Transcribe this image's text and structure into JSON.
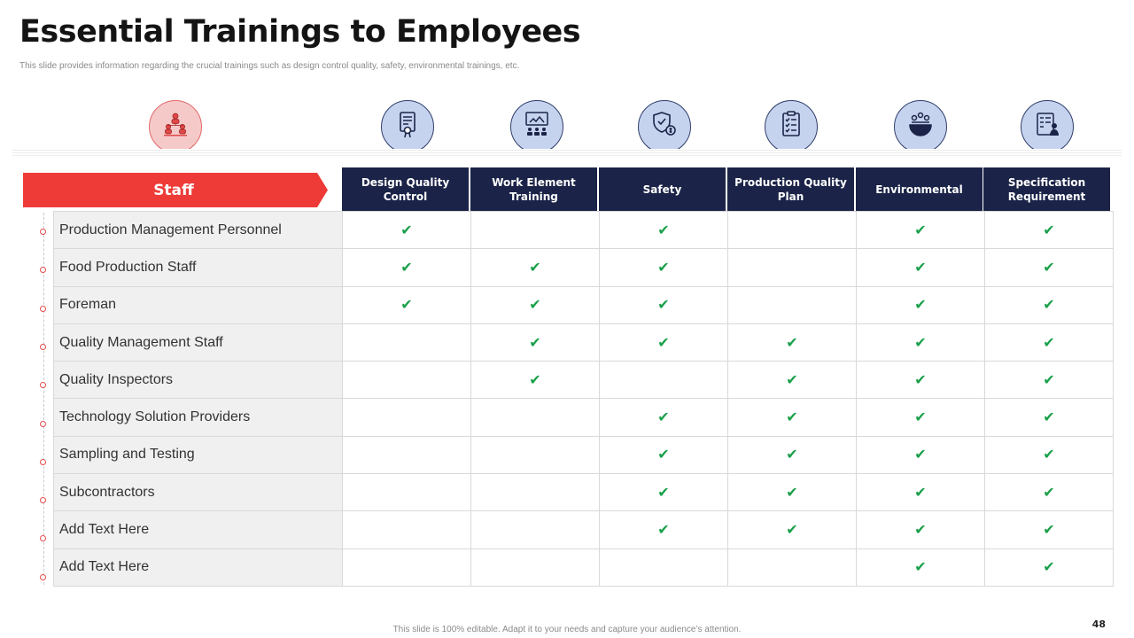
{
  "slide": {
    "title": "Essential Trainings to Employees",
    "subtitle": "This slide provides information regarding the crucial trainings such as design control quality, safety, environmental trainings, etc.",
    "footer": "This slide is 100% editable.  Adapt it to your needs and capture your audience’s attention.",
    "page_number": "48"
  },
  "staff_label": "Staff",
  "icons": [
    "team-hierarchy-icon",
    "certificate-icon",
    "presentation-training-icon",
    "safety-shield-icon",
    "clipboard-checklist-icon",
    "globe-environment-icon",
    "specification-document-icon"
  ],
  "colors": {
    "accent_red": "#ee3b38",
    "header_navy": "#1b2448",
    "check_green": "#1aa04a",
    "icon_fill": "#c6d3ef"
  },
  "columns": [
    "Design Quality\nControl",
    "Work Element\nTraining",
    "Safety",
    "Production Quality\nPlan",
    "Environmental",
    "Specification\nRequirement"
  ],
  "check_symbol": "✔",
  "rows": [
    {
      "label": "Production Management Personnel",
      "checks": [
        true,
        false,
        true,
        false,
        true,
        true
      ]
    },
    {
      "label": "Food Production Staff",
      "checks": [
        true,
        true,
        true,
        false,
        true,
        true
      ]
    },
    {
      "label": "Foreman",
      "checks": [
        true,
        true,
        true,
        false,
        true,
        true
      ]
    },
    {
      "label": "Quality Management Staff",
      "checks": [
        false,
        true,
        true,
        true,
        true,
        true
      ]
    },
    {
      "label": "Quality Inspectors",
      "checks": [
        false,
        true,
        false,
        true,
        true,
        true
      ]
    },
    {
      "label": "Technology  Solution Providers",
      "checks": [
        false,
        false,
        true,
        true,
        true,
        true
      ]
    },
    {
      "label": "Sampling and Testing",
      "checks": [
        false,
        false,
        true,
        true,
        true,
        true
      ]
    },
    {
      "label": "Subcontractors",
      "checks": [
        false,
        false,
        true,
        true,
        true,
        true
      ]
    },
    {
      "label": "Add Text Here",
      "checks": [
        false,
        false,
        true,
        true,
        true,
        true
      ]
    },
    {
      "label": "Add Text Here",
      "checks": [
        false,
        false,
        false,
        false,
        true,
        true
      ]
    }
  ]
}
